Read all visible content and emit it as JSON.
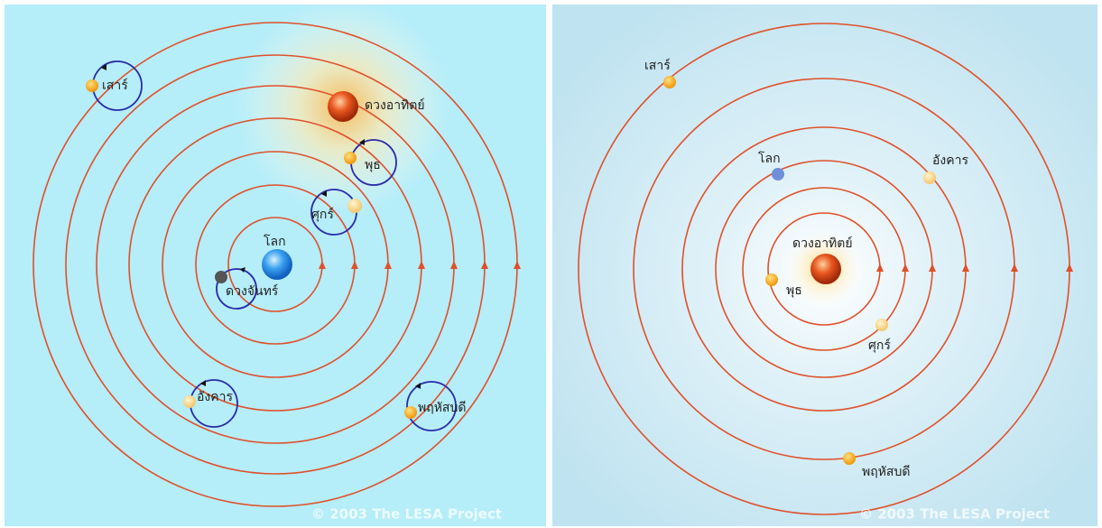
{
  "panels": [
    {
      "labels": [
        "เสาร์",
        "ดวงอาทิตย์",
        "พุธ",
        "ศุกร์",
        "โลก",
        "ดวงจันทร์",
        "อังคาร",
        "พฤหัสบดี"
      ],
      "copyright": "© 2003 The LESA Project"
    },
    {
      "labels": [
        "เสาร์",
        "โลก",
        "อังคาร",
        "ดวงอาทิตย์",
        "พุธ",
        "ศุกร์",
        "พฤหัสบดี"
      ],
      "copyright": "© 2003 The LESA Project"
    }
  ]
}
